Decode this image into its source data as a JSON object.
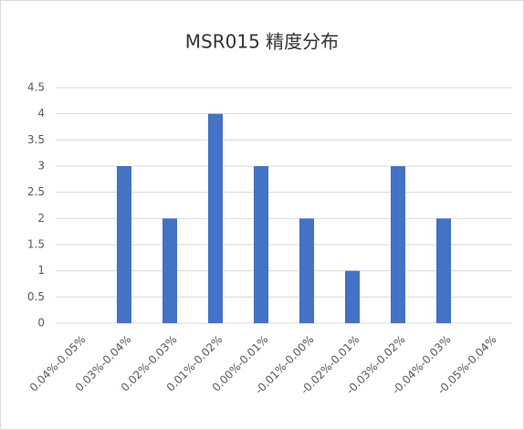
{
  "chart_data": {
    "type": "bar",
    "title": "MSR015 精度分布",
    "categories": [
      "0.04%-0.05%",
      "0.03%-0.04%",
      "0.02%-0.03%",
      "0.01%-0.02%",
      "0.00%-0.01%",
      "-0.01%-0.00%",
      "-0.02%-0.01%",
      "-0.03%-0.02%",
      "-0.04%-0.03%",
      "-0.05%-0.04%"
    ],
    "values": [
      0,
      3,
      2,
      4,
      3,
      2,
      1,
      3,
      2,
      0
    ],
    "color": "#4472c4",
    "ylim": [
      0,
      4.5
    ],
    "yticks": [
      0,
      0.5,
      1,
      1.5,
      2,
      2.5,
      3,
      3.5,
      4,
      4.5
    ],
    "grid": true
  }
}
